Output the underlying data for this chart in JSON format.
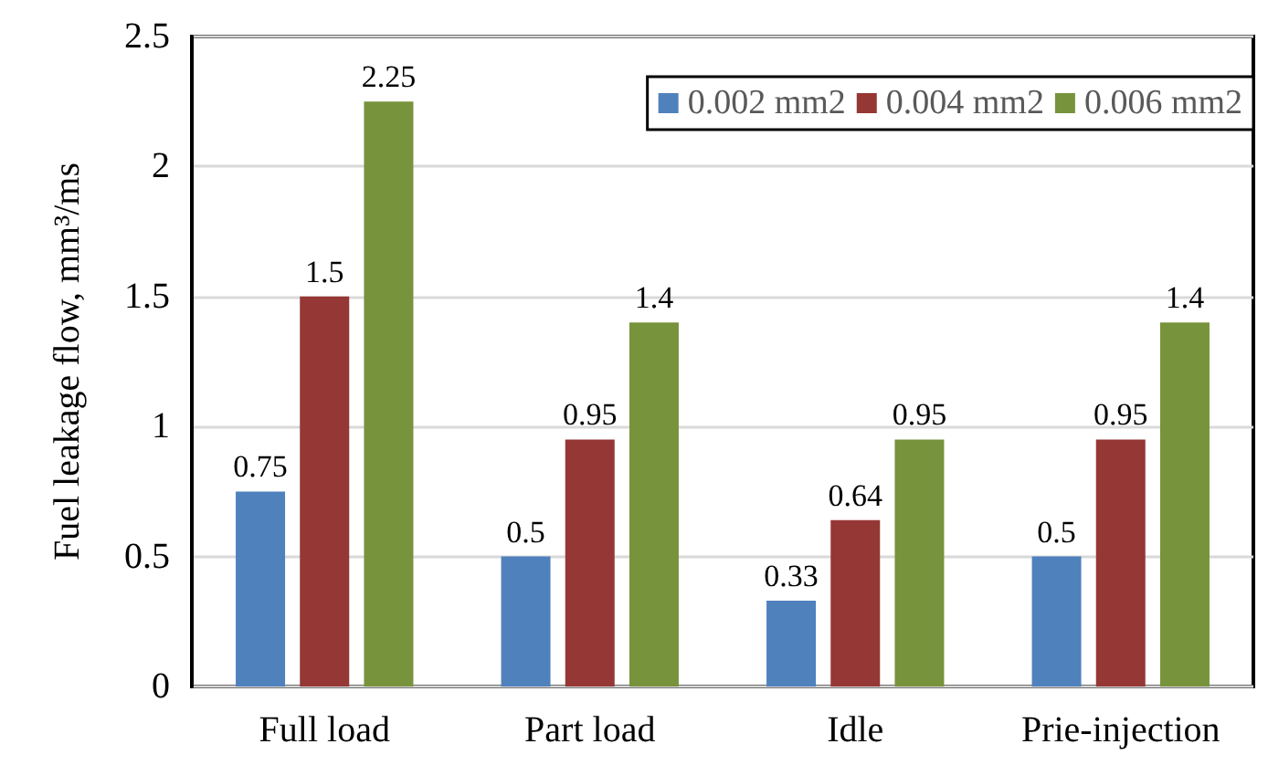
{
  "chart_data": {
    "type": "bar",
    "ylabel": "Fuel leakage flow, mm³/ms",
    "categories": [
      "Full load",
      "Part load",
      "Idle",
      "Prie-injection"
    ],
    "series": [
      {
        "name": "0.002 mm2",
        "color": "#4f81bd",
        "values": [
          0.75,
          0.5,
          0.33,
          0.5
        ]
      },
      {
        "name": "0.004 mm2",
        "color": "#953735",
        "values": [
          1.5,
          0.95,
          0.64,
          0.95
        ]
      },
      {
        "name": "0.006 mm2",
        "color": "#77933c",
        "values": [
          2.25,
          1.4,
          0.95,
          1.4
        ]
      }
    ],
    "ylim": [
      0,
      2.5
    ],
    "yticks": [
      0,
      0.5,
      1,
      1.5,
      2,
      2.5
    ],
    "grid": "y",
    "legend": "top right",
    "data_labels": true
  }
}
